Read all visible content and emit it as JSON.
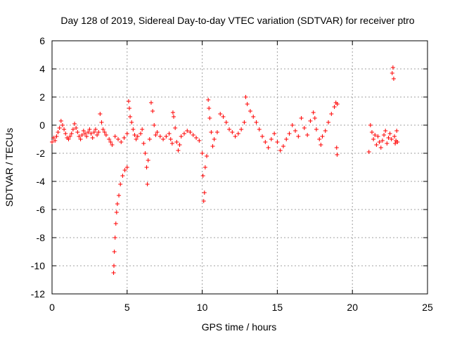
{
  "chart_data": {
    "type": "scatter",
    "title": "Day 128 of 2019, Sidereal Day-to-day VTEC variation (SDTVAR) for receiver ptro",
    "xlabel": "GPS time / hours",
    "ylabel": "SDTVAR / TECUs",
    "xlim": [
      0,
      25
    ],
    "ylim": [
      -12,
      6
    ],
    "xticks": [
      0,
      5,
      10,
      15,
      20,
      25
    ],
    "xtick_labels": [
      "0",
      "5",
      "10",
      "15",
      "20",
      "25"
    ],
    "yticks": [
      -12,
      -10,
      -8,
      -6,
      -4,
      -2,
      0,
      2,
      4,
      6
    ],
    "ytick_labels": [
      "-12",
      "-10",
      "-8",
      "-6",
      "-4",
      "-2",
      "0",
      "2",
      "4",
      "6"
    ],
    "grid": true,
    "marker": "+",
    "color": "#ff0000",
    "series": [
      {
        "name": "SDTVAR",
        "points": [
          [
            0.0,
            -1.2
          ],
          [
            0.1,
            -0.9
          ],
          [
            0.2,
            -1.1
          ],
          [
            0.3,
            -0.8
          ],
          [
            0.4,
            -0.5
          ],
          [
            0.5,
            -0.2
          ],
          [
            0.6,
            0.3
          ],
          [
            0.7,
            0.0
          ],
          [
            0.8,
            -0.3
          ],
          [
            0.9,
            -0.6
          ],
          [
            1.0,
            -0.9
          ],
          [
            1.1,
            -1.0
          ],
          [
            1.2,
            -0.8
          ],
          [
            1.3,
            -0.6
          ],
          [
            1.4,
            -0.3
          ],
          [
            1.5,
            0.1
          ],
          [
            1.6,
            -0.2
          ],
          [
            1.7,
            -0.5
          ],
          [
            1.8,
            -0.8
          ],
          [
            1.9,
            -1.0
          ],
          [
            2.0,
            -0.7
          ],
          [
            2.1,
            -0.4
          ],
          [
            2.2,
            -0.6
          ],
          [
            2.3,
            -0.8
          ],
          [
            2.4,
            -0.5
          ],
          [
            2.5,
            -0.3
          ],
          [
            2.6,
            -0.6
          ],
          [
            2.7,
            -0.9
          ],
          [
            2.8,
            -0.5
          ],
          [
            2.9,
            -0.3
          ],
          [
            3.0,
            -0.7
          ],
          [
            3.1,
            -0.5
          ],
          [
            3.2,
            0.8
          ],
          [
            3.3,
            0.2
          ],
          [
            3.4,
            -0.3
          ],
          [
            3.5,
            -0.5
          ],
          [
            3.6,
            -0.7
          ],
          [
            3.8,
            -1.0
          ],
          [
            3.9,
            -1.2
          ],
          [
            4.0,
            -1.4
          ],
          [
            4.1,
            -10.5
          ],
          [
            4.12,
            -10.0
          ],
          [
            4.15,
            -9.0
          ],
          [
            4.2,
            -8.0
          ],
          [
            4.25,
            -7.0
          ],
          [
            4.3,
            -6.2
          ],
          [
            4.35,
            -5.6
          ],
          [
            4.45,
            -5.0
          ],
          [
            4.55,
            -4.2
          ],
          [
            4.7,
            -3.6
          ],
          [
            4.85,
            -3.2
          ],
          [
            5.0,
            -3.0
          ],
          [
            4.2,
            -0.8
          ],
          [
            4.4,
            -1.0
          ],
          [
            4.6,
            -1.2
          ],
          [
            4.8,
            -0.9
          ],
          [
            5.0,
            -0.6
          ],
          [
            5.1,
            1.7
          ],
          [
            5.15,
            1.2
          ],
          [
            5.2,
            0.6
          ],
          [
            5.3,
            0.2
          ],
          [
            5.4,
            -0.3
          ],
          [
            5.5,
            -0.7
          ],
          [
            5.6,
            -1.0
          ],
          [
            5.7,
            -0.8
          ],
          [
            5.9,
            -0.6
          ],
          [
            6.0,
            -0.3
          ],
          [
            6.1,
            -1.3
          ],
          [
            6.2,
            -2.0
          ],
          [
            6.3,
            -3.0
          ],
          [
            6.35,
            -4.2
          ],
          [
            6.4,
            -2.5
          ],
          [
            6.5,
            -1.0
          ],
          [
            6.6,
            1.6
          ],
          [
            6.7,
            1.0
          ],
          [
            6.8,
            0.0
          ],
          [
            6.9,
            -0.7
          ],
          [
            7.0,
            -0.5
          ],
          [
            7.2,
            -0.8
          ],
          [
            7.4,
            -1.0
          ],
          [
            7.6,
            -0.8
          ],
          [
            7.8,
            -0.6
          ],
          [
            7.9,
            -1.0
          ],
          [
            8.0,
            -1.3
          ],
          [
            8.05,
            0.9
          ],
          [
            8.1,
            0.6
          ],
          [
            8.2,
            -0.2
          ],
          [
            8.3,
            -1.2
          ],
          [
            8.4,
            -1.8
          ],
          [
            8.5,
            -1.4
          ],
          [
            8.6,
            -0.8
          ],
          [
            8.8,
            -0.6
          ],
          [
            9.0,
            -0.4
          ],
          [
            9.2,
            -0.5
          ],
          [
            9.4,
            -0.7
          ],
          [
            9.6,
            -0.9
          ],
          [
            9.8,
            -1.1
          ],
          [
            10.0,
            -2.0
          ],
          [
            10.05,
            -3.6
          ],
          [
            10.1,
            -5.4
          ],
          [
            10.15,
            -4.8
          ],
          [
            10.2,
            -3.0
          ],
          [
            10.3,
            -2.2
          ],
          [
            10.4,
            1.8
          ],
          [
            10.45,
            1.2
          ],
          [
            10.5,
            0.5
          ],
          [
            10.6,
            -0.5
          ],
          [
            10.7,
            -1.5
          ],
          [
            10.8,
            -1.0
          ],
          [
            11.0,
            -0.5
          ],
          [
            11.2,
            0.8
          ],
          [
            11.4,
            0.6
          ],
          [
            11.6,
            0.2
          ],
          [
            11.8,
            -0.3
          ],
          [
            12.0,
            -0.5
          ],
          [
            12.2,
            -0.8
          ],
          [
            12.4,
            -0.6
          ],
          [
            12.6,
            -0.3
          ],
          [
            12.8,
            0.2
          ],
          [
            12.9,
            2.0
          ],
          [
            13.0,
            1.5
          ],
          [
            13.2,
            1.0
          ],
          [
            13.4,
            0.6
          ],
          [
            13.6,
            0.2
          ],
          [
            13.8,
            -0.3
          ],
          [
            14.0,
            -0.8
          ],
          [
            14.2,
            -1.2
          ],
          [
            14.4,
            -1.6
          ],
          [
            14.6,
            -1.0
          ],
          [
            14.8,
            -0.6
          ],
          [
            15.0,
            -1.2
          ],
          [
            15.2,
            -1.8
          ],
          [
            15.4,
            -1.5
          ],
          [
            15.6,
            -1.0
          ],
          [
            15.8,
            -0.6
          ],
          [
            16.0,
            0.0
          ],
          [
            16.2,
            -0.4
          ],
          [
            16.4,
            -0.8
          ],
          [
            16.6,
            0.5
          ],
          [
            16.8,
            -0.2
          ],
          [
            17.0,
            -0.7
          ],
          [
            17.2,
            0.3
          ],
          [
            17.4,
            0.9
          ],
          [
            17.5,
            0.5
          ],
          [
            17.6,
            -0.3
          ],
          [
            17.8,
            -1.0
          ],
          [
            17.9,
            -1.4
          ],
          [
            18.0,
            -0.8
          ],
          [
            18.2,
            -0.4
          ],
          [
            18.4,
            0.2
          ],
          [
            18.6,
            0.8
          ],
          [
            18.8,
            1.3
          ],
          [
            18.9,
            1.6
          ],
          [
            19.0,
            1.5
          ],
          [
            18.95,
            -1.6
          ],
          [
            18.98,
            -2.1
          ],
          [
            21.1,
            -1.9
          ],
          [
            21.2,
            0.0
          ],
          [
            21.3,
            -0.5
          ],
          [
            21.4,
            -1.0
          ],
          [
            21.5,
            -0.7
          ],
          [
            21.6,
            -1.4
          ],
          [
            21.7,
            -0.8
          ],
          [
            21.8,
            -1.2
          ],
          [
            21.9,
            -1.6
          ],
          [
            22.0,
            -1.1
          ],
          [
            22.1,
            -0.7
          ],
          [
            22.2,
            -0.4
          ],
          [
            22.3,
            -1.3
          ],
          [
            22.4,
            -0.9
          ],
          [
            22.5,
            -0.6
          ],
          [
            22.6,
            -1.0
          ],
          [
            22.65,
            3.7
          ],
          [
            22.7,
            4.1
          ],
          [
            22.75,
            3.3
          ],
          [
            22.8,
            -0.8
          ],
          [
            22.85,
            -1.3
          ],
          [
            22.9,
            -1.1
          ],
          [
            22.95,
            -0.4
          ],
          [
            23.0,
            -1.2
          ]
        ]
      }
    ]
  }
}
